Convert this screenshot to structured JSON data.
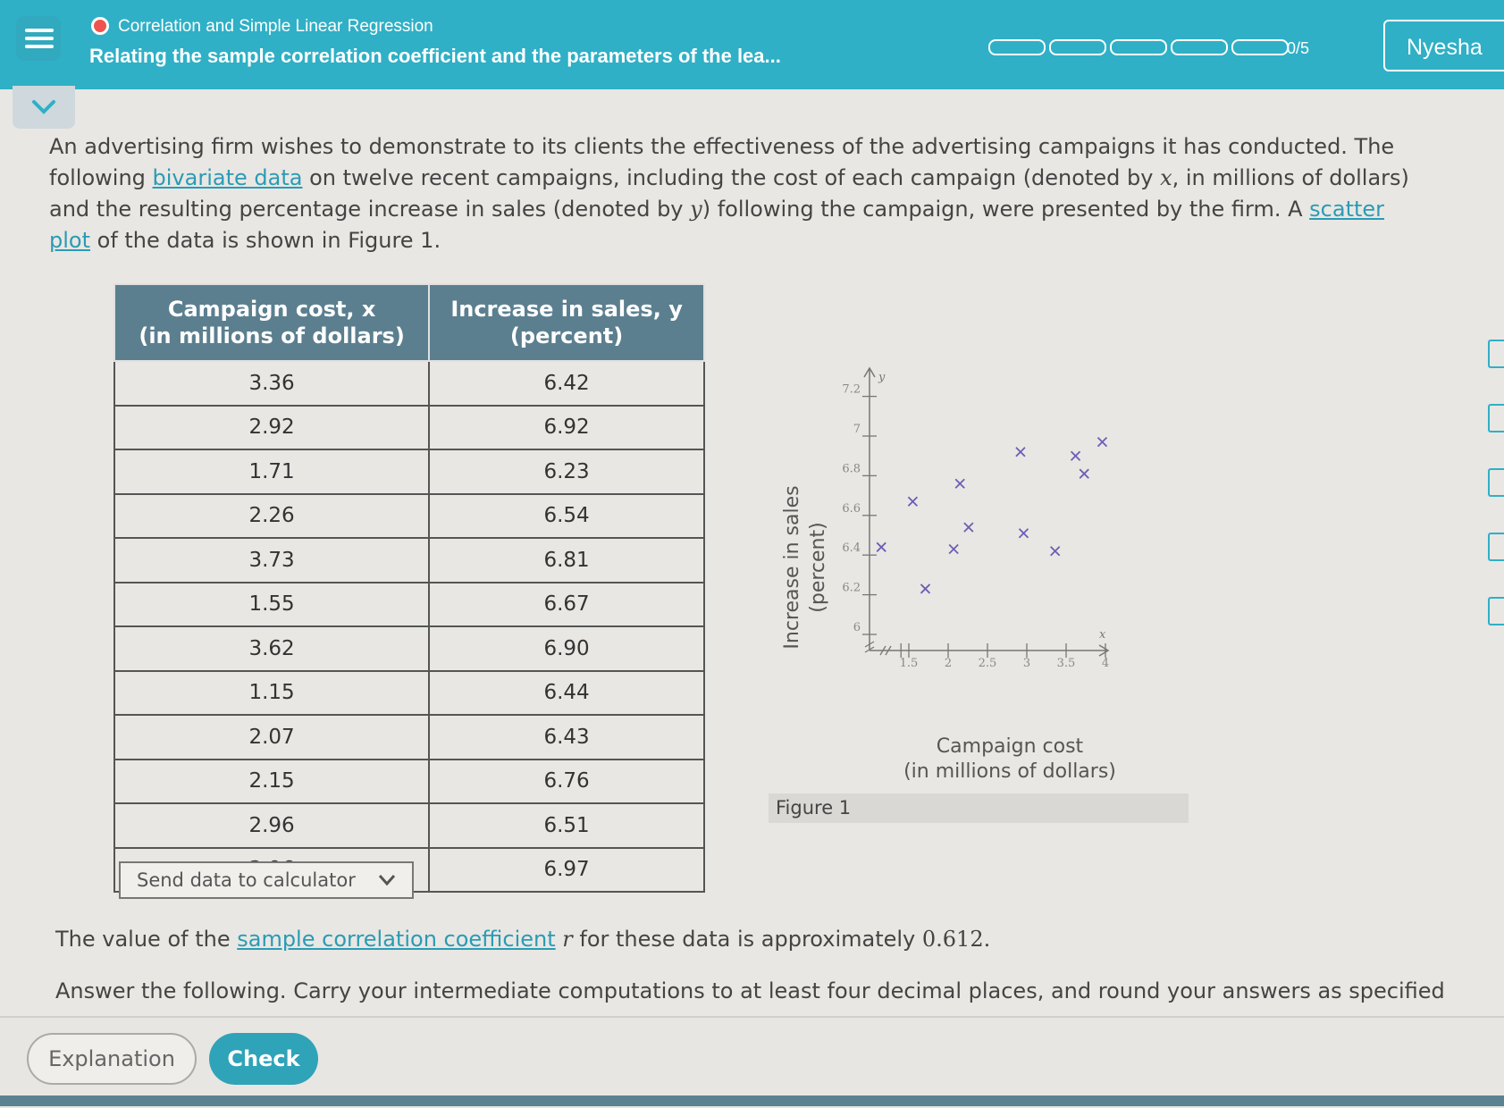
{
  "header": {
    "topic": "Correlation and Simple Linear Regression",
    "lesson_title": "Relating the sample correlation coefficient and the parameters of the lea...",
    "progress_text": "0/5",
    "progress_segments": 5,
    "progress_completed": 0,
    "user_name": "Nyesha"
  },
  "intro": {
    "p1": "An advertising firm wishes to demonstrate to its clients the effectiveness of the advertising campaigns it has conducted. The following ",
    "link1": "bivariate data",
    "p2": " on twelve recent campaigns, including the cost of each campaign (denoted by ",
    "var_x": "x",
    "p3": ", in millions of dollars) and the resulting percentage increase in sales (denoted by ",
    "var_y": "y",
    "p4": ") following the campaign, were presented by the firm. A ",
    "link2": "scatter plot",
    "p5": " of the data is shown in Figure 1."
  },
  "table": {
    "header_x_line1": "Campaign cost, x",
    "header_x_line2": "(in millions of dollars)",
    "header_y_line1": "Increase in sales, y",
    "header_y_line2": "(percent)",
    "rows": [
      [
        "3.36",
        "6.42"
      ],
      [
        "2.92",
        "6.92"
      ],
      [
        "1.71",
        "6.23"
      ],
      [
        "2.26",
        "6.54"
      ],
      [
        "3.73",
        "6.81"
      ],
      [
        "1.55",
        "6.67"
      ],
      [
        "3.62",
        "6.90"
      ],
      [
        "1.15",
        "6.44"
      ],
      [
        "2.07",
        "6.43"
      ],
      [
        "2.15",
        "6.76"
      ],
      [
        "2.96",
        "6.51"
      ],
      [
        "3.96",
        "6.97"
      ]
    ],
    "send_button": "Send data to calculator"
  },
  "chart_data": {
    "type": "scatter",
    "points": [
      [
        3.36,
        6.42
      ],
      [
        2.92,
        6.92
      ],
      [
        1.71,
        6.23
      ],
      [
        2.26,
        6.54
      ],
      [
        3.73,
        6.81
      ],
      [
        1.55,
        6.67
      ],
      [
        3.62,
        6.9
      ],
      [
        1.15,
        6.44
      ],
      [
        2.07,
        6.43
      ],
      [
        2.15,
        6.76
      ],
      [
        2.96,
        6.51
      ],
      [
        3.96,
        6.97
      ]
    ],
    "xlabel_line1": "Campaign cost",
    "xlabel_line2": "(in millions of dollars)",
    "ylabel_line1": "Increase in sales",
    "ylabel_line2": "(percent)",
    "x_axis_letter": "x",
    "y_axis_letter": "y",
    "xticks": [
      "1.5",
      "2",
      "2.5",
      "3",
      "3.5",
      "4"
    ],
    "yticks": [
      "6",
      "6.2",
      "6.4",
      "6.6",
      "6.8",
      "7",
      "7.2"
    ],
    "xlim": [
      1,
      4.5
    ],
    "ylim": [
      6,
      7.3
    ],
    "marker": "x",
    "marker_color": "#6a5fb5",
    "caption": "Figure 1"
  },
  "question": {
    "corr_prefix": "The value of the ",
    "corr_link": "sample correlation coefficient",
    "corr_var": "r",
    "corr_suffix": " for these data is approximately ",
    "corr_value": "0.612.",
    "answer_text": "Answer the following. Carry your intermediate computations to at least four decimal places, and round your answers as specified"
  },
  "buttons": {
    "explanation": "Explanation",
    "check": "Check"
  },
  "colors": {
    "header_bg": "#2fb0c6",
    "table_header_bg": "#5b7f8f",
    "link": "#2a9bb5",
    "check_bg": "#2fa3b8"
  }
}
